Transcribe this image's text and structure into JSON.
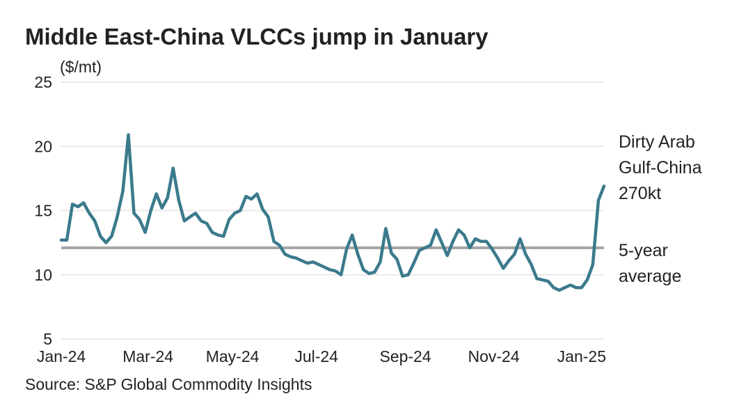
{
  "chart_data": {
    "type": "line",
    "title": "Middle East-China VLCCs jump in January",
    "y_label": "($/mt)",
    "source": "Source: S&P Global Commodity Insights",
    "ylim": [
      5,
      25
    ],
    "yticks": [
      5,
      10,
      15,
      20,
      25
    ],
    "xlim": [
      0,
      97
    ],
    "xticks": [
      {
        "value": 0,
        "label": "Jan-24"
      },
      {
        "value": 15.5,
        "label": "Mar-24"
      },
      {
        "value": 30.6,
        "label": "May-24"
      },
      {
        "value": 45.6,
        "label": "Jul-24"
      },
      {
        "value": 61.5,
        "label": "Sep-24"
      },
      {
        "value": 77.3,
        "label": "Nov-24"
      },
      {
        "value": 93,
        "label": "Jan-25"
      }
    ],
    "grid": true,
    "series": [
      {
        "name": [
          "Dirty Arab",
          "Gulf-China",
          "270kt"
        ],
        "color": "#3b7a8c",
        "values": [
          12.7,
          12.7,
          15.5,
          15.3,
          15.6,
          14.8,
          14.2,
          13.0,
          12.5,
          13.0,
          14.5,
          16.5,
          20.9,
          14.8,
          14.3,
          13.3,
          15.0,
          16.3,
          15.2,
          16.0,
          18.3,
          15.8,
          14.2,
          14.5,
          14.8,
          14.2,
          14.0,
          13.3,
          13.1,
          13.0,
          14.3,
          14.8,
          15.0,
          16.1,
          15.9,
          16.3,
          15.1,
          14.5,
          12.6,
          12.3,
          11.6,
          11.4,
          11.3,
          11.1,
          10.9,
          11.0,
          10.8,
          10.6,
          10.4,
          10.3,
          10.0,
          12.0,
          13.1,
          11.6,
          10.4,
          10.1,
          10.2,
          11.0,
          13.6,
          11.7,
          11.2,
          9.9,
          10.0,
          10.9,
          11.9,
          12.1,
          12.3,
          13.5,
          12.5,
          11.5,
          12.6,
          13.5,
          13.1,
          12.1,
          12.8,
          12.6,
          12.6,
          12.0,
          11.3,
          10.5,
          11.1,
          11.6,
          12.8,
          11.6,
          10.8,
          9.7,
          9.6,
          9.5,
          9.0,
          8.8,
          9.0,
          9.2,
          9.0,
          9.0,
          9.6,
          10.8,
          15.8,
          16.9
        ]
      }
    ],
    "reference_line": {
      "label": [
        "5-year",
        "average"
      ],
      "value": 12.1,
      "color": "#a6a6a6"
    }
  }
}
